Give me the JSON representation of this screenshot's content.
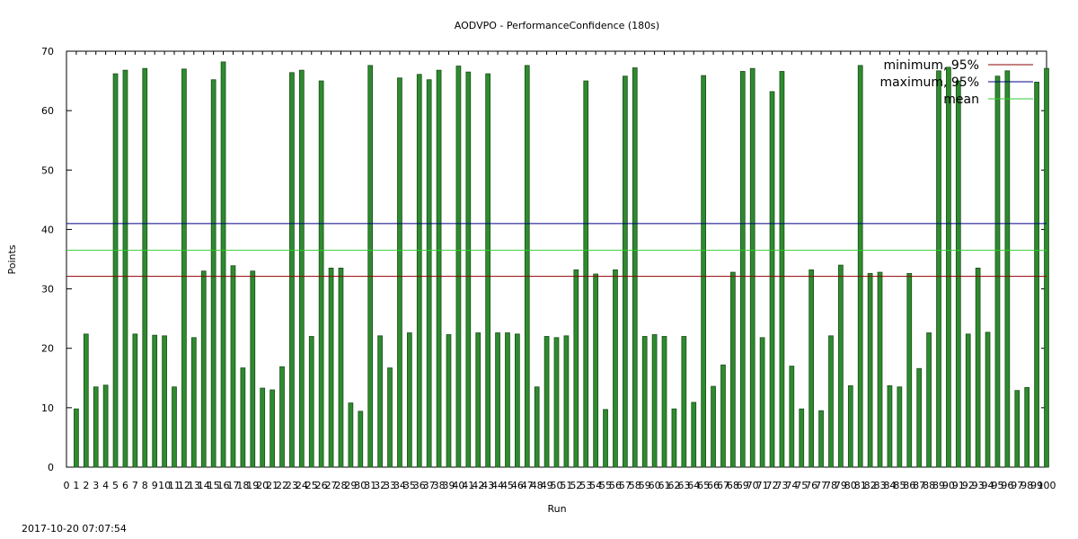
{
  "chart_data": {
    "type": "bar",
    "title": "AODVPO - PerformanceConfidence (180s)",
    "xlabel": "Run",
    "ylabel": "Points",
    "xlim": [
      0,
      100
    ],
    "ylim": [
      0,
      70
    ],
    "yticks": [
      0,
      10,
      20,
      30,
      40,
      50,
      60,
      70
    ],
    "bar_color": "#2e8b2e",
    "bar_edge_color": "#1a4d1a",
    "grid": false,
    "legend_position": "top-right",
    "x": [
      1,
      2,
      3,
      4,
      5,
      6,
      7,
      8,
      9,
      10,
      11,
      12,
      13,
      14,
      15,
      16,
      17,
      18,
      19,
      20,
      21,
      22,
      23,
      24,
      25,
      26,
      27,
      28,
      29,
      30,
      31,
      32,
      33,
      34,
      35,
      36,
      37,
      38,
      39,
      40,
      41,
      42,
      43,
      44,
      45,
      46,
      47,
      48,
      49,
      50,
      51,
      52,
      53,
      54,
      55,
      56,
      57,
      58,
      59,
      60,
      61,
      62,
      63,
      64,
      65,
      66,
      67,
      68,
      69,
      70,
      71,
      72,
      73,
      74,
      75,
      76,
      77,
      78,
      79,
      80,
      81,
      82,
      83,
      84,
      85,
      86,
      87,
      88,
      89,
      90,
      91,
      92,
      93,
      94,
      95,
      96,
      97,
      98,
      99,
      100
    ],
    "values": [
      9.8,
      22.4,
      13.5,
      13.8,
      66.2,
      66.8,
      22.4,
      67.1,
      22.2,
      22.1,
      13.5,
      67.0,
      21.8,
      33.0,
      65.2,
      68.2,
      33.9,
      16.7,
      33.0,
      13.3,
      13.0,
      16.9,
      66.4,
      66.8,
      22.0,
      65.0,
      33.5,
      33.5,
      10.8,
      9.4,
      67.6,
      22.1,
      16.7,
      65.5,
      22.6,
      66.1,
      65.2,
      66.8,
      22.3,
      67.5,
      66.5,
      22.6,
      66.2,
      22.6,
      22.6,
      22.4,
      67.6,
      13.5,
      22.0,
      21.8,
      22.1,
      33.2,
      65.0,
      32.5,
      9.7,
      33.2,
      65.8,
      67.2,
      22.0,
      22.3,
      22.0,
      9.8,
      22.0,
      10.9,
      65.9,
      13.6,
      17.2,
      32.8,
      66.6,
      67.1,
      21.8,
      63.2,
      66.6,
      17.0,
      9.8,
      33.2,
      9.5,
      22.1,
      34.0,
      13.7,
      67.6,
      32.6,
      32.8,
      13.7,
      13.5,
      32.6,
      16.6,
      22.6,
      66.7,
      67.3,
      65.0,
      22.4,
      33.5,
      22.7,
      65.8,
      66.7,
      12.9,
      13.4,
      64.8,
      67.1
    ],
    "series": [
      {
        "name": "minimum, 95%",
        "value": 32.1,
        "color": "#8b0000"
      },
      {
        "name": "maximum, 95%",
        "value": 41.0,
        "color": "#000080"
      },
      {
        "name": "mean",
        "value": 36.5,
        "color": "#32cd32"
      }
    ]
  },
  "footer": {
    "timestamp": "2017-10-20 07:07:54"
  }
}
